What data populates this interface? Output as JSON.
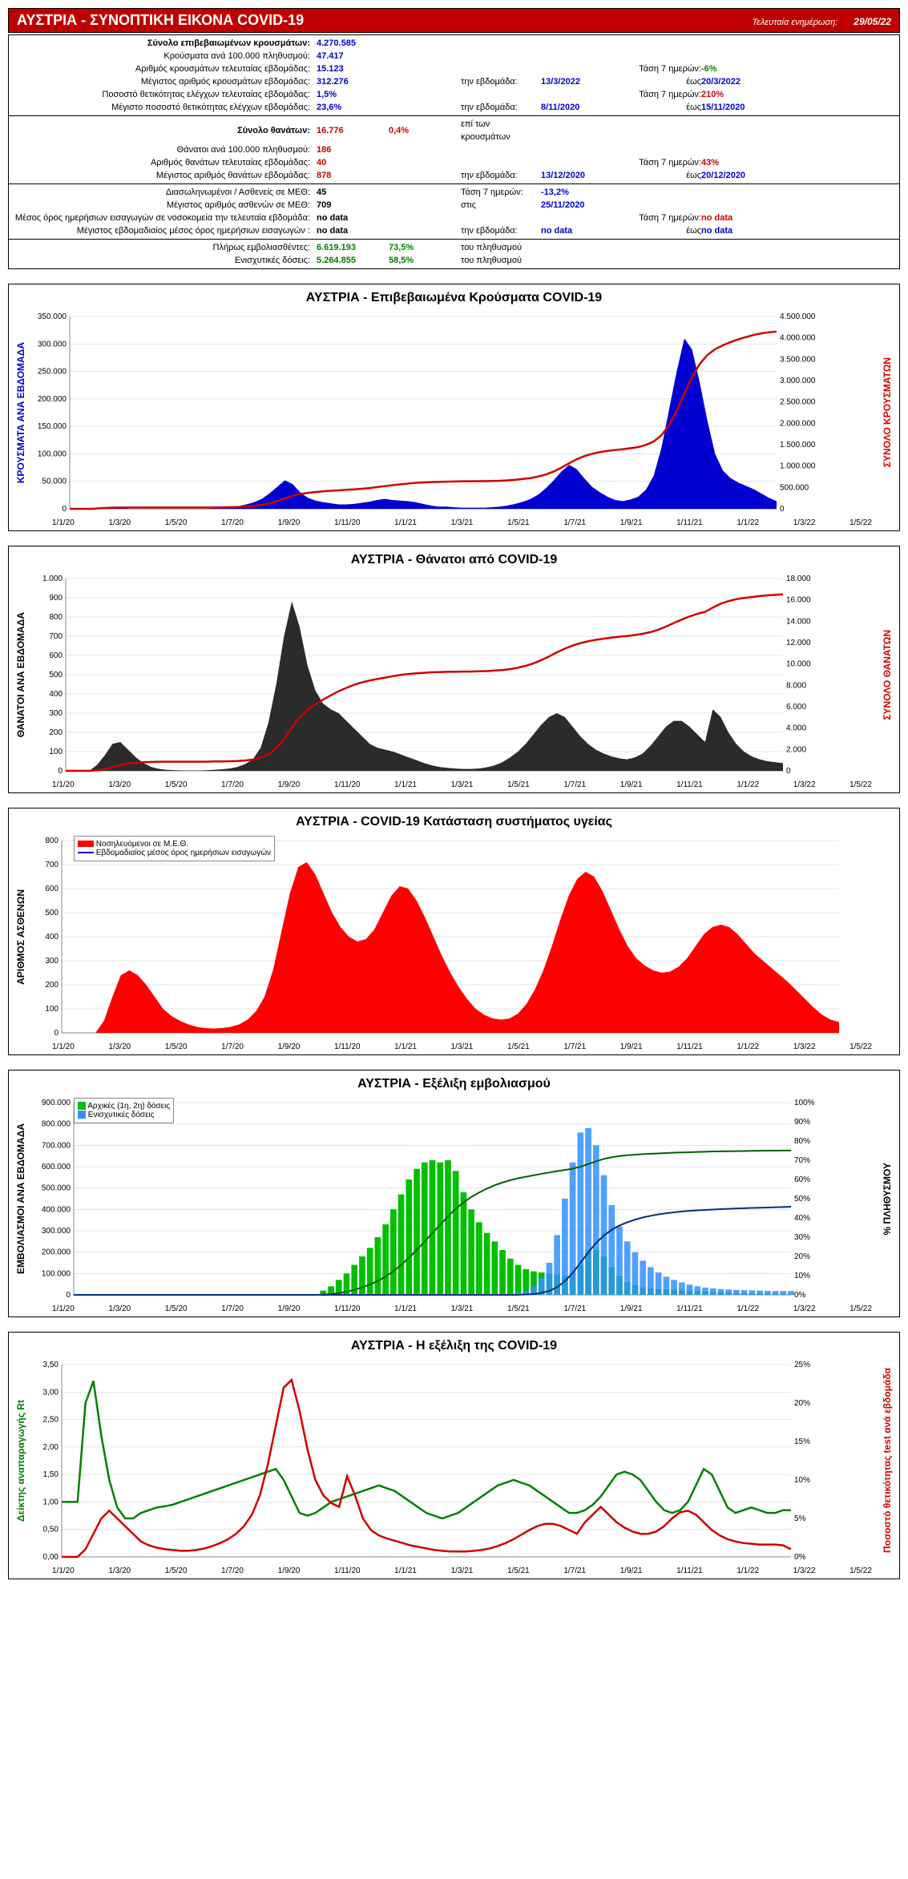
{
  "header": {
    "title": "ΑΥΣΤΡΙΑ - ΣΥΝΟΠΤΙΚΗ ΕΙΚΟΝΑ COVID-19",
    "update_label": "Τελευταία ενημέρωση:",
    "update_date": "29/05/22"
  },
  "summary": {
    "s1": [
      {
        "label": "Σύνολο επιβεβαιωμένων κρουσμάτων:",
        "labelBold": true,
        "v1": "4.270.585",
        "c1": "val-blue"
      },
      {
        "label": "Κρούσματα ανά 100.000 πληθυσμού:",
        "v1": "47.417",
        "c1": "val-blue"
      },
      {
        "label": "Αριθμός κρουσμάτων τελευταίας εβδομάδας:",
        "v1": "15.123",
        "c1": "val-blue",
        "trend_lbl": "Τάση 7 ημερών:",
        "trend": "-6%",
        "tc": "val-green"
      },
      {
        "label": "Μέγιστος αριθμός κρουσμάτων εβδομάδας:",
        "v1": "312.276",
        "c1": "val-blue",
        "mid": "την εβδομάδα:",
        "mid2": "13/3/2022",
        "trend_lbl": "έως",
        "trend": "20/3/2022",
        "tc": "val-blue"
      },
      {
        "label": "Ποσοστό θετικότητας ελέγχων τελευταίας εβδομάδας:",
        "v1": "1,5%",
        "c1": "val-blue",
        "trend_lbl": "Τάση 7 ημερών:",
        "trend": "210%",
        "tc": "val-red"
      },
      {
        "label": "Μέγιστο ποσοστό θετικότητας ελέγχων εβδομάδας:",
        "v1": "23,6%",
        "c1": "val-blue",
        "mid": "την εβδομάδα:",
        "mid2": "8/11/2020",
        "trend_lbl": "έως",
        "trend": "15/11/2020",
        "tc": "val-blue"
      }
    ],
    "s2": [
      {
        "label": "Σύνολο θανάτων:",
        "labelBold": true,
        "v1": "16.776",
        "c1": "val-red",
        "v2": "0,4%",
        "c2": "val-red",
        "mid": "επί των κρουσμάτων"
      },
      {
        "label": "Θάνατοι ανά 100.000 πληθυσμού:",
        "v1": "186",
        "c1": "val-red"
      },
      {
        "label": "Αριθμός θανάτων τελευταίας εβδομάδας:",
        "v1": "40",
        "c1": "val-red",
        "trend_lbl": "Τάση 7 ημερών:",
        "trend": "43%",
        "tc": "val-red"
      },
      {
        "label": "Μέγιστος αριθμός θανάτων εβδομάδας:",
        "v1": "878",
        "c1": "val-red",
        "mid": "την εβδομάδα:",
        "mid2": "13/12/2020",
        "trend_lbl": "έως",
        "trend": "20/12/2020",
        "tc": "val-blue"
      }
    ],
    "s3": [
      {
        "label": "Διασωληνωμένοι / Ασθενείς σε ΜΕΘ:",
        "v1": "45",
        "c1": "",
        "mid": "Τάση 7 ημερών:",
        "mid2": "-13,2%",
        "mid2c": "val-green"
      },
      {
        "label": "Μέγιστος αριθμός ασθενών σε ΜΕΘ:",
        "v1": "709",
        "c1": "",
        "mid": "στις",
        "mid2": "25/11/2020"
      },
      {
        "label": "Μέσος όρος ημερήσιων εισαγωγών σε νοσοκομεία την τελευταία εβδομάδα:",
        "v1": "no data",
        "c1": "",
        "trend_lbl": "Τάση 7 ημερών:",
        "trend": "no data",
        "tc": "val-red"
      },
      {
        "label": "Μέγιστος εβδομαδιαίος μέσος όρος ημερήσιων εισαγωγών :",
        "v1": "no data",
        "c1": "",
        "mid": "την εβδομάδα:",
        "mid2": "no data",
        "trend_lbl": "έως",
        "trend": "no data",
        "tc": "val-blue"
      }
    ],
    "s4": [
      {
        "label": "Πλήρως εμβολιασθέντες:",
        "v1": "6.619.193",
        "c1": "val-green",
        "v2": "73,5%",
        "c2": "val-green",
        "mid": "του πληθυσμού"
      },
      {
        "label": "Ενισχυτικές δόσεις:",
        "v1": "5.264.855",
        "c1": "val-green",
        "v2": "58,5%",
        "c2": "val-green",
        "mid": "του πληθυσμού"
      }
    ]
  },
  "xlabels": [
    "1/1/20",
    "1/3/20",
    "1/5/20",
    "1/7/20",
    "1/9/20",
    "1/11/20",
    "1/1/21",
    "1/3/21",
    "1/5/21",
    "1/7/21",
    "1/9/21",
    "1/11/21",
    "1/1/22",
    "1/3/22",
    "1/5/22"
  ],
  "chart1": {
    "title": "ΑΥΣΤΡΙΑ - Επιβεβαιωμένα Κρούσματα COVID-19",
    "yleft": "ΚΡΟΥΣΜΑΤΑ ΑΝΑ ΕΒΔΟΜΑΔΑ",
    "yright": "ΣΥΝΟΛΟ ΚΡΟΥΣΜΑΤΩΝ",
    "yleft_ticks": [
      "0",
      "50.000",
      "100.000",
      "150.000",
      "200.000",
      "250.000",
      "300.000",
      "350.000"
    ],
    "yright_ticks": [
      "0",
      "500.000",
      "1.000.000",
      "1.500.000",
      "2.000.000",
      "2.500.000",
      "3.000.000",
      "3.500.000",
      "4.000.000",
      "4.500.000"
    ],
    "area_color": "#0000d0",
    "line_color": "#d00000",
    "area": [
      0,
      0,
      0,
      0,
      2,
      2,
      1,
      1,
      0,
      0,
      0,
      0,
      0,
      0,
      0,
      0,
      0,
      0,
      0,
      1,
      2,
      3,
      5,
      8,
      12,
      18,
      28,
      40,
      52,
      45,
      30,
      20,
      15,
      12,
      10,
      8,
      8,
      9,
      11,
      13,
      16,
      18,
      16,
      15,
      14,
      12,
      9,
      6,
      4,
      4,
      3,
      2,
      2,
      2,
      2,
      3,
      4,
      6,
      9,
      13,
      18,
      26,
      38,
      52,
      68,
      80,
      72,
      55,
      40,
      30,
      22,
      16,
      14,
      17,
      22,
      35,
      60,
      110,
      180,
      250,
      310,
      290,
      230,
      160,
      100,
      70,
      56,
      48,
      42,
      36,
      28,
      20,
      14
    ],
    "area_max": 350,
    "cum": [
      0,
      0,
      0,
      0,
      0.3,
      0.5,
      0.6,
      0.7,
      0.7,
      0.7,
      0.7,
      0.7,
      0.7,
      0.7,
      0.7,
      0.7,
      0.7,
      0.7,
      0.7,
      0.7,
      0.8,
      0.9,
      1.0,
      1.2,
      1.5,
      2.0,
      2.8,
      4.0,
      5.5,
      6.8,
      7.7,
      8.3,
      8.7,
      9.1,
      9.4,
      9.6,
      9.9,
      10.1,
      10.4,
      10.8,
      11.3,
      11.8,
      12.3,
      12.7,
      13.1,
      13.5,
      13.7,
      13.9,
      14.0,
      14.1,
      14.2,
      14.3,
      14.3,
      14.4,
      14.4,
      14.5,
      14.6,
      14.8,
      15.1,
      15.5,
      16.0,
      16.8,
      17.9,
      19.4,
      21.4,
      23.7,
      25.8,
      27.4,
      28.6,
      29.5,
      30.1,
      30.6,
      31.0,
      31.5,
      32.1,
      33.2,
      35.0,
      38.2,
      43.5,
      50.9,
      60.0,
      68.5,
      75.3,
      80.0,
      83.0,
      85.0,
      86.7,
      88.1,
      89.3,
      90.4,
      91.2,
      91.8,
      92.2
    ],
    "cum_max": 100
  },
  "chart2": {
    "title": "ΑΥΣΤΡΙΑ - Θάνατοι από COVID-19",
    "yleft": "ΘΑΝΑΤΟΙ ΑΝΑ ΕΒΔΟΜΑΔΑ",
    "yright": "ΣΥΝΟΛΟ ΘΑΝΑΤΩΝ",
    "yleft_ticks": [
      "0",
      "100",
      "200",
      "300",
      "400",
      "500",
      "600",
      "700",
      "800",
      "900",
      "1.000"
    ],
    "yright_ticks": [
      "0",
      "2.000",
      "4.000",
      "6.000",
      "8.000",
      "10.000",
      "12.000",
      "14.000",
      "16.000",
      "18.000"
    ],
    "area_color": "#2b2b2b",
    "line_color": "#d00000",
    "area": [
      0,
      0,
      0,
      0,
      30,
      80,
      140,
      150,
      110,
      70,
      40,
      20,
      10,
      5,
      3,
      2,
      2,
      2,
      3,
      5,
      8,
      12,
      20,
      35,
      60,
      120,
      250,
      450,
      700,
      880,
      750,
      550,
      420,
      350,
      320,
      300,
      260,
      220,
      180,
      140,
      120,
      110,
      100,
      85,
      70,
      55,
      40,
      28,
      20,
      15,
      12,
      10,
      10,
      12,
      18,
      28,
      45,
      70,
      100,
      140,
      190,
      240,
      280,
      300,
      280,
      230,
      180,
      140,
      110,
      90,
      75,
      65,
      60,
      70,
      90,
      130,
      180,
      230,
      260,
      260,
      230,
      190,
      150,
      320,
      280,
      200,
      140,
      100,
      75,
      60,
      50,
      45,
      40
    ],
    "area_max": 1000,
    "cum": [
      0,
      0,
      0,
      0,
      0.2,
      0.7,
      1.5,
      2.4,
      3.0,
      3.4,
      3.6,
      3.7,
      3.8,
      3.8,
      3.8,
      3.8,
      3.8,
      3.8,
      3.8,
      3.9,
      3.9,
      4.0,
      4.1,
      4.3,
      4.7,
      5.4,
      6.8,
      9.3,
      13.2,
      18.1,
      22.3,
      25.3,
      27.7,
      29.6,
      31.4,
      33.1,
      34.5,
      35.8,
      36.8,
      37.6,
      38.2,
      38.8,
      39.4,
      39.9,
      40.3,
      40.6,
      40.8,
      41.0,
      41.1,
      41.2,
      41.2,
      41.3,
      41.3,
      41.4,
      41.5,
      41.7,
      41.9,
      42.3,
      42.9,
      43.7,
      44.7,
      46.1,
      47.6,
      49.3,
      50.8,
      52.1,
      53.1,
      53.9,
      54.5,
      55.0,
      55.4,
      55.8,
      56.1,
      56.5,
      57.0,
      57.7,
      58.7,
      60.0,
      61.5,
      62.9,
      64.2,
      65.3,
      66.1,
      67.9,
      69.5,
      70.6,
      71.4,
      71.9,
      72.3,
      72.7,
      73.0,
      73.2,
      73.4
    ],
    "cum_max": 80
  },
  "chart3": {
    "title": "ΑΥΣΤΡΙΑ - COVID-19 Κατάσταση συστήματος υγείας",
    "yleft": "ΑΡΙΘΜΟΣ ΑΣΘΕΝΩΝ",
    "yleft_ticks": [
      "0",
      "100",
      "200",
      "300",
      "400",
      "500",
      "600",
      "700",
      "800"
    ],
    "legend1": "Νοσηλευόμενοι σε Μ.Ε.Θ.",
    "legend2": "Εβδομαδιαίος μέσος όρος ημερήσιων εισαγωγών",
    "area_color": "#ff0000",
    "area": [
      0,
      0,
      0,
      0,
      0,
      50,
      150,
      240,
      260,
      240,
      200,
      150,
      100,
      70,
      50,
      35,
      25,
      20,
      18,
      20,
      25,
      35,
      55,
      90,
      150,
      260,
      420,
      580,
      690,
      710,
      660,
      580,
      500,
      440,
      400,
      380,
      390,
      430,
      500,
      570,
      610,
      600,
      550,
      480,
      400,
      320,
      250,
      190,
      140,
      100,
      75,
      60,
      55,
      60,
      80,
      120,
      180,
      260,
      360,
      470,
      570,
      640,
      670,
      650,
      590,
      510,
      430,
      360,
      310,
      280,
      260,
      250,
      255,
      275,
      310,
      360,
      410,
      440,
      450,
      440,
      410,
      370,
      330,
      300,
      270,
      240,
      210,
      175,
      140,
      105,
      75,
      55,
      45
    ],
    "area_max": 800
  },
  "chart4": {
    "title": "ΑΥΣΤΡΙΑ - Εξέλιξη εμβολιασμού",
    "yleft": "ΕΜΒΟΛΙΑΣΜΟΙ ΑΝΑ ΕΒΔΟΜΑΔΑ",
    "yright": "% ΠΛΗΘΥΣΜΟΥ",
    "yleft_ticks": [
      "0",
      "100.000",
      "200.000",
      "300.000",
      "400.000",
      "500.000",
      "600.000",
      "700.000",
      "800.000",
      "900.000"
    ],
    "yright_ticks": [
      "0%",
      "10%",
      "20%",
      "30%",
      "40%",
      "50%",
      "60%",
      "70%",
      "80%",
      "90%",
      "100%"
    ],
    "legend1": "Αρχικές (1η, 2η) δόσεις",
    "legend2": "Ενισχυτικές δόσεις",
    "bars_green": [
      0,
      0,
      0,
      0,
      0,
      0,
      0,
      0,
      0,
      0,
      0,
      0,
      0,
      0,
      0,
      0,
      0,
      0,
      0,
      0,
      0,
      0,
      0,
      0,
      0,
      0,
      0,
      0,
      0,
      0,
      0,
      0,
      20,
      40,
      70,
      100,
      140,
      180,
      220,
      270,
      330,
      400,
      470,
      540,
      590,
      620,
      630,
      620,
      630,
      580,
      480,
      400,
      340,
      290,
      250,
      210,
      170,
      140,
      120,
      110,
      105,
      100,
      95,
      90,
      100,
      140,
      200,
      210,
      180,
      130,
      90,
      60,
      45,
      35,
      30,
      28,
      26,
      24,
      22,
      20,
      18,
      16,
      14,
      12,
      10,
      9,
      8,
      7,
      6,
      5,
      5,
      5,
      5
    ],
    "bars_blue": [
      0,
      0,
      0,
      0,
      0,
      0,
      0,
      0,
      0,
      0,
      0,
      0,
      0,
      0,
      0,
      0,
      0,
      0,
      0,
      0,
      0,
      0,
      0,
      0,
      0,
      0,
      0,
      0,
      0,
      0,
      0,
      0,
      0,
      0,
      0,
      0,
      0,
      0,
      0,
      0,
      0,
      0,
      0,
      0,
      0,
      0,
      0,
      0,
      0,
      0,
      0,
      0,
      0,
      0,
      0,
      0,
      0,
      10,
      20,
      40,
      80,
      150,
      280,
      450,
      620,
      760,
      780,
      700,
      560,
      420,
      320,
      250,
      200,
      160,
      130,
      105,
      85,
      70,
      58,
      48,
      40,
      34,
      30,
      27,
      25,
      23,
      22,
      21,
      20,
      19,
      18,
      18,
      18
    ],
    "bar_max": 900,
    "line_green": [
      0,
      0,
      0,
      0,
      0,
      0,
      0,
      0,
      0,
      0,
      0,
      0,
      0,
      0,
      0,
      0,
      0,
      0,
      0,
      0,
      0,
      0,
      0,
      0,
      0,
      0,
      0,
      0,
      0,
      0,
      0,
      0,
      0.2,
      0.7,
      1.5,
      2.6,
      4.2,
      6.2,
      8.6,
      11.6,
      15.3,
      19.7,
      24.9,
      30.9,
      37.5,
      44.4,
      51.4,
      58.3,
      65.3,
      71.7,
      77.0,
      81.4,
      85.2,
      88.4,
      91.2,
      93.5,
      95.4,
      97.0,
      98.3,
      99.5,
      100.7,
      101.8,
      102.9,
      103.9,
      105.0,
      106.6,
      108.8,
      111.1,
      113.1,
      114.5,
      115.5,
      116.2,
      116.7,
      117.1,
      117.4,
      117.7,
      118.0,
      118.3,
      118.5,
      118.7,
      118.9,
      119.1,
      119.3,
      119.4,
      119.5,
      119.6,
      119.7,
      119.8,
      119.9,
      120.0,
      120.0,
      120.1,
      120.1
    ],
    "line_blue": [
      0,
      0,
      0,
      0,
      0,
      0,
      0,
      0,
      0,
      0,
      0,
      0,
      0,
      0,
      0,
      0,
      0,
      0,
      0,
      0,
      0,
      0,
      0,
      0,
      0,
      0,
      0,
      0,
      0,
      0,
      0,
      0,
      0,
      0,
      0,
      0,
      0,
      0,
      0,
      0,
      0,
      0,
      0,
      0,
      0,
      0,
      0,
      0,
      0,
      0,
      0,
      0,
      0,
      0,
      0,
      0,
      0,
      0.1,
      0.3,
      0.7,
      1.6,
      3.3,
      6.4,
      11.4,
      18.3,
      26.7,
      35.4,
      43.2,
      49.4,
      54.1,
      57.7,
      60.4,
      62.6,
      64.4,
      65.8,
      67.0,
      67.9,
      68.7,
      69.4,
      69.9,
      70.3,
      70.7,
      71.0,
      71.3,
      71.6,
      71.9,
      72.1,
      72.3,
      72.5,
      72.7,
      72.9,
      73.1,
      73.3
    ],
    "line_max": 160
  },
  "chart5": {
    "title": "ΑΥΣΤΡΙΑ - Η εξέλιξη της COVID-19",
    "yleft": "Δείκτης αναπαραγωγής Rt",
    "yright": "Ποσοστό θετικότητας test ανά εβδομάδα",
    "yleft_ticks": [
      "0,00",
      "0,50",
      "1,00",
      "1,50",
      "2,00",
      "2,50",
      "3,00",
      "3,50"
    ],
    "yright_ticks": [
      "0%",
      "5%",
      "10%",
      "15%",
      "20%",
      "25%"
    ],
    "green": [
      1.0,
      1.0,
      1.0,
      2.8,
      3.2,
      2.2,
      1.4,
      0.9,
      0.7,
      0.7,
      0.8,
      0.85,
      0.9,
      0.92,
      0.95,
      1.0,
      1.05,
      1.1,
      1.15,
      1.2,
      1.25,
      1.3,
      1.35,
      1.4,
      1.45,
      1.5,
      1.55,
      1.6,
      1.4,
      1.1,
      0.8,
      0.75,
      0.8,
      0.9,
      1.0,
      1.05,
      1.1,
      1.15,
      1.2,
      1.25,
      1.3,
      1.25,
      1.2,
      1.1,
      1.0,
      0.9,
      0.8,
      0.75,
      0.7,
      0.75,
      0.8,
      0.9,
      1.0,
      1.1,
      1.2,
      1.3,
      1.35,
      1.4,
      1.35,
      1.3,
      1.2,
      1.1,
      1.0,
      0.9,
      0.8,
      0.8,
      0.85,
      0.95,
      1.1,
      1.3,
      1.5,
      1.55,
      1.5,
      1.4,
      1.2,
      1.0,
      0.85,
      0.8,
      0.85,
      1.0,
      1.3,
      1.6,
      1.5,
      1.2,
      0.9,
      0.8,
      0.85,
      0.9,
      0.85,
      0.8,
      0.8,
      0.85,
      0.85
    ],
    "green_max": 3.5,
    "red": [
      0,
      0,
      0,
      1,
      3,
      5,
      6,
      5,
      4,
      3,
      2,
      1.5,
      1.2,
      1.0,
      0.9,
      0.8,
      0.8,
      0.9,
      1.1,
      1.4,
      1.8,
      2.3,
      3.0,
      4.0,
      5.5,
      8.0,
      12.0,
      17.0,
      22.0,
      23.0,
      19.0,
      14.0,
      10.0,
      8.0,
      7.0,
      6.5,
      10.5,
      8.0,
      5.0,
      3.5,
      2.8,
      2.4,
      2.1,
      1.8,
      1.5,
      1.3,
      1.1,
      0.9,
      0.8,
      0.7,
      0.7,
      0.7,
      0.8,
      0.9,
      1.1,
      1.4,
      1.8,
      2.3,
      2.9,
      3.5,
      4.0,
      4.3,
      4.3,
      4.0,
      3.5,
      3.0,
      4.5,
      5.5,
      6.5,
      5.5,
      4.5,
      3.8,
      3.3,
      3.0,
      3.0,
      3.3,
      4.0,
      5.0,
      5.8,
      6.0,
      5.5,
      4.5,
      3.5,
      2.8,
      2.3,
      2.0,
      1.8,
      1.7,
      1.6,
      1.6,
      1.6,
      1.5,
      1.0
    ],
    "red_max": 25
  }
}
